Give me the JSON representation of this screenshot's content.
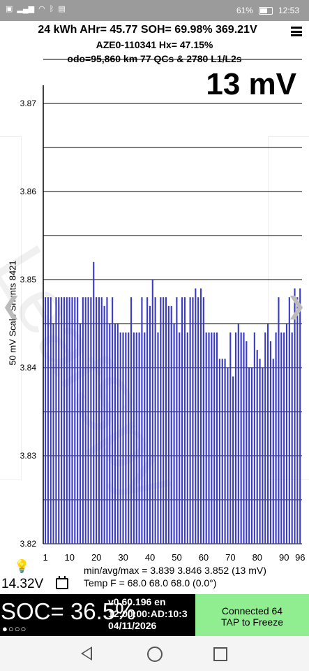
{
  "status_bar": {
    "battery_pct": "61%",
    "time": "12:53"
  },
  "header": {
    "line1": "24 kWh  AHr= 45.77 SOH= 69.98% 369.21V",
    "line2": "AZE0-110341   Hx= 47.15%",
    "line3": "odo=95,860 km 77 QCs & 2780 L1/L2s"
  },
  "spread": "13 mV",
  "watermark": "LeafSpy",
  "chart_data": {
    "type": "bar",
    "ylabel": "50 mV Scale Shunts 8421",
    "ylim": [
      3.82,
      3.875
    ],
    "y_ticks": [
      "3.87",
      "3.86",
      "3.85",
      "3.84",
      "3.83",
      "3.82"
    ],
    "x_ticks": [
      "1",
      "10",
      "20",
      "30",
      "40",
      "50",
      "60",
      "70",
      "80",
      "90",
      "96"
    ],
    "grid": true,
    "color": "#3a3ac8",
    "cells": [
      3.848,
      3.848,
      3.848,
      3.845,
      3.848,
      3.848,
      3.848,
      3.848,
      3.848,
      3.848,
      3.848,
      3.848,
      3.848,
      3.845,
      3.848,
      3.848,
      3.848,
      3.848,
      3.852,
      3.848,
      3.848,
      3.848,
      3.847,
      3.848,
      3.845,
      3.848,
      3.845,
      3.845,
      3.844,
      3.844,
      3.844,
      3.844,
      3.848,
      3.844,
      3.844,
      3.844,
      3.848,
      3.844,
      3.848,
      3.847,
      3.85,
      3.848,
      3.844,
      3.848,
      3.848,
      3.848,
      3.847,
      3.847,
      3.845,
      3.848,
      3.844,
      3.848,
      3.848,
      3.844,
      3.848,
      3.848,
      3.849,
      3.848,
      3.849,
      3.848,
      3.844,
      3.844,
      3.844,
      3.844,
      3.844,
      3.841,
      3.841,
      3.841,
      3.84,
      3.844,
      3.839,
      3.844,
      3.845,
      3.844,
      3.844,
      3.843,
      3.84,
      3.84,
      3.844,
      3.842,
      3.841,
      3.84,
      3.844,
      3.845,
      3.843,
      3.841,
      3.844,
      3.848,
      3.844,
      3.844,
      3.845,
      3.848,
      3.844,
      3.849,
      3.848,
      3.849
    ]
  },
  "stats": {
    "line": "min/avg/max = 3.839 3.846 3.852  (13 mV)"
  },
  "pack_voltage": "14.32V",
  "temp": "Temp F = 68.0  68.0  68.0  (0.0°)",
  "soc": "SOC= 36.5%",
  "dots": "●○○○",
  "version": {
    "line1": "v0.60.196 en",
    "line2": "12:00:00:AD:10:3",
    "date": "04/11/2026"
  },
  "connection": {
    "line1": "Connected 64",
    "line2": "TAP to Freeze"
  }
}
